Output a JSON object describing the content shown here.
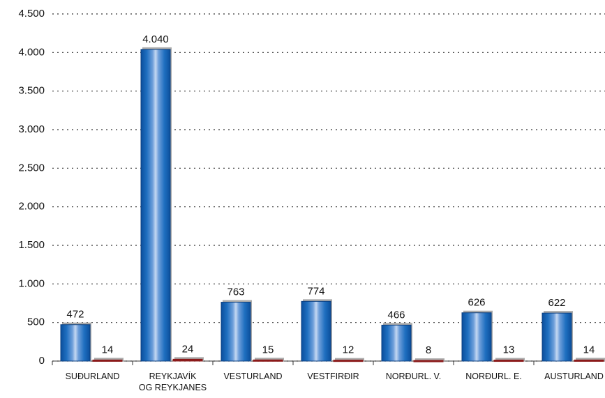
{
  "chart_data": {
    "type": "bar",
    "categories": [
      "SUÐURLAND",
      "REYKJAVÍK\nOG REYKJANES",
      "VESTURLAND",
      "VESTFIRÐIR",
      "NORÐURL. V.",
      "NORÐURL. E.",
      "AUSTURLAND"
    ],
    "series": [
      {
        "color": "#1f6fc0",
        "values": [
          472,
          4040,
          763,
          774,
          466,
          626,
          622
        ],
        "value_labels": [
          "472",
          "4.040",
          "763",
          "774",
          "466",
          "626",
          "622"
        ]
      },
      {
        "color": "#8b1a1a",
        "values": [
          14,
          24,
          15,
          12,
          8,
          13,
          14
        ]
      }
    ],
    "ylim": [
      0,
      4500
    ],
    "yticks": [
      0,
      500,
      {
        "value": 1000,
        "label": "1.000"
      },
      {
        "value": 1500,
        "label": "1.500"
      },
      {
        "value": 2000,
        "label": "2.000"
      },
      {
        "value": 2500,
        "label": "2.500"
      },
      {
        "value": 3000,
        "label": "3.000"
      },
      {
        "value": 3500,
        "label": "3.500"
      },
      {
        "value": 4000,
        "label": "4.000"
      },
      {
        "value": 4500,
        "label": "4.500"
      }
    ],
    "grid": true
  }
}
